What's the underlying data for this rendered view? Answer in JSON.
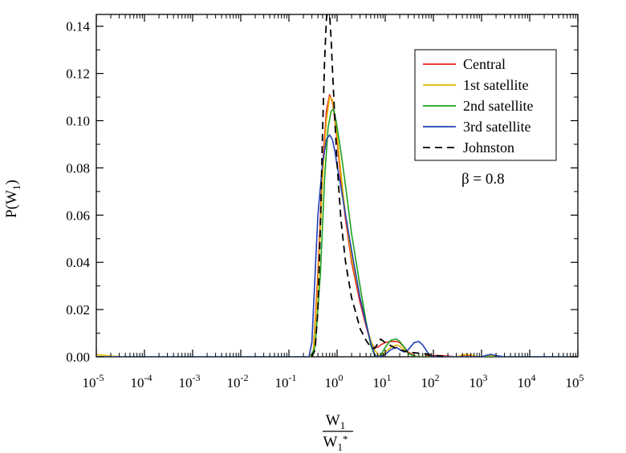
{
  "chart_data": {
    "type": "line",
    "xscale": "log",
    "xlim": [
      1e-05,
      100000.0
    ],
    "ylim": [
      0,
      0.145
    ],
    "x_ticks": [
      {
        "value": 1e-05,
        "base": "10",
        "exp": "-5"
      },
      {
        "value": 0.0001,
        "base": "10",
        "exp": "-4"
      },
      {
        "value": 0.001,
        "base": "10",
        "exp": "-3"
      },
      {
        "value": 0.01,
        "base": "10",
        "exp": "-2"
      },
      {
        "value": 0.1,
        "base": "10",
        "exp": "-1"
      },
      {
        "value": 1,
        "base": "10",
        "exp": "0"
      },
      {
        "value": 10,
        "base": "10",
        "exp": "1"
      },
      {
        "value": 100,
        "base": "10",
        "exp": "2"
      },
      {
        "value": 1000,
        "base": "10",
        "exp": "3"
      },
      {
        "value": 10000,
        "base": "10",
        "exp": "4"
      },
      {
        "value": 100000,
        "base": "10",
        "exp": "5"
      }
    ],
    "y_ticks": [
      {
        "value": 0,
        "label": "0.00"
      },
      {
        "value": 0.02,
        "label": "0.02"
      },
      {
        "value": 0.04,
        "label": "0.04"
      },
      {
        "value": 0.06,
        "label": "0.06"
      },
      {
        "value": 0.08,
        "label": "0.08"
      },
      {
        "value": 0.1,
        "label": "0.10"
      },
      {
        "value": 0.12,
        "label": "0.12"
      },
      {
        "value": 0.14,
        "label": "0.14"
      }
    ],
    "ylabel": {
      "main": "P(W",
      "sub": "1",
      "close": ")"
    },
    "xlabel": {
      "num_main": "W",
      "num_sub": "1",
      "den_main": "W",
      "den_sub": "1",
      "den_sup": "*"
    },
    "annotation": "β = 0.8",
    "legend_position": "top-right",
    "series": [
      {
        "name": "Central",
        "color": "#e8211d",
        "dash": "solid",
        "x": [
          1e-05,
          0.25,
          0.32,
          0.4,
          0.5,
          0.6,
          0.7,
          0.8,
          0.9,
          1.0,
          1.2,
          1.5,
          2.0,
          3.0,
          4.0,
          5.0,
          6.0,
          7.0,
          8.0,
          10,
          13,
          17,
          20,
          25,
          30,
          40,
          50,
          60,
          80,
          100,
          150,
          200,
          300,
          400,
          500,
          600,
          700,
          800,
          1000,
          1200,
          1500,
          2000,
          3000,
          100000
        ],
        "values": [
          0.0,
          0.0,
          0.0015,
          0.035,
          0.08,
          0.104,
          0.111,
          0.108,
          0.1,
          0.092,
          0.075,
          0.058,
          0.04,
          0.023,
          0.013,
          0.006,
          0.004,
          0.004,
          0.005,
          0.006,
          0.0065,
          0.0065,
          0.006,
          0.004,
          0.002,
          0.0005,
          0.0,
          0.0,
          0.0005,
          0.0005,
          0.0005,
          0.0003,
          0.0,
          0.0005,
          0.0008,
          0.0005,
          0.0002,
          0.0,
          0.0,
          0.0002,
          0.0008,
          0.0,
          0.0,
          0.0
        ]
      },
      {
        "name": "1st satellite",
        "color": "#e6b800",
        "dash": "solid",
        "x": [
          1e-05,
          2e-05,
          4e-05,
          0.25,
          0.32,
          0.4,
          0.5,
          0.6,
          0.7,
          0.8,
          0.9,
          1.0,
          1.2,
          1.5,
          2.0,
          3.0,
          4.0,
          5.0,
          6.0,
          7.0,
          8.0,
          10,
          13,
          17,
          20,
          25,
          30,
          40,
          50,
          60,
          80,
          100,
          150,
          200,
          300,
          400,
          500,
          600,
          700,
          800,
          1000,
          1200,
          1500,
          2000,
          3000,
          100000
        ],
        "values": [
          0.001,
          0.0003,
          0.0,
          0.0,
          0.001,
          0.03,
          0.075,
          0.1,
          0.11,
          0.109,
          0.101,
          0.094,
          0.078,
          0.06,
          0.042,
          0.025,
          0.014,
          0.007,
          0.003,
          0.001,
          0.0,
          0.002,
          0.004,
          0.005,
          0.0045,
          0.003,
          0.0015,
          0.0003,
          0.0,
          0.0,
          0.0,
          0.0,
          0.0,
          0.0,
          0.0,
          0.0008,
          0.001,
          0.0008,
          0.0004,
          0.0,
          0.0,
          0.0004,
          0.0006,
          0.0,
          0.0,
          0.0
        ]
      },
      {
        "name": "2nd satellite",
        "color": "#1fa01f",
        "dash": "solid",
        "x": [
          1e-05,
          0.28,
          0.35,
          0.45,
          0.55,
          0.65,
          0.75,
          0.85,
          0.95,
          1.1,
          1.3,
          1.6,
          2.0,
          2.5,
          3.0,
          3.5,
          4.0,
          5.0,
          6.0,
          7.0,
          8.0,
          10,
          13,
          17,
          20,
          25,
          30,
          40,
          50,
          60,
          100000
        ],
        "values": [
          0.0,
          0.0,
          0.004,
          0.035,
          0.075,
          0.097,
          0.104,
          0.105,
          0.1,
          0.092,
          0.082,
          0.068,
          0.052,
          0.04,
          0.03,
          0.022,
          0.015,
          0.005,
          0.0005,
          0.0,
          0.0005,
          0.004,
          0.007,
          0.0075,
          0.0065,
          0.004,
          0.0015,
          0.0002,
          0.0,
          0.0,
          0.0
        ]
      },
      {
        "name": "3rd satellite",
        "color": "#1f3fb5",
        "dash": "solid",
        "x": [
          1e-05,
          0.2,
          0.26,
          0.3,
          0.35,
          0.4,
          0.5,
          0.6,
          0.7,
          0.8,
          0.9,
          1.0,
          1.2,
          1.5,
          2.0,
          2.5,
          3.0,
          4.0,
          5.0,
          6.0,
          7.0,
          8.0,
          10,
          13,
          17,
          20,
          25,
          30,
          40,
          50,
          60,
          70,
          80,
          100,
          120,
          150,
          200,
          300,
          600,
          1000,
          1300,
          1600,
          2000,
          3000,
          100000
        ],
        "values": [
          0.0,
          0.0,
          0.0,
          0.006,
          0.035,
          0.06,
          0.082,
          0.092,
          0.094,
          0.092,
          0.087,
          0.081,
          0.072,
          0.06,
          0.045,
          0.034,
          0.025,
          0.014,
          0.006,
          0.001,
          0.0,
          0.0,
          0.001,
          0.003,
          0.004,
          0.003,
          0.002,
          0.003,
          0.006,
          0.0065,
          0.005,
          0.003,
          0.001,
          0.0,
          0.0,
          0.0,
          0.0,
          0.0,
          0.0,
          0.0,
          0.0007,
          0.001,
          0.0005,
          0.0,
          0.0
        ]
      },
      {
        "name": "Johnston",
        "color": "#000000",
        "dash": "dashed",
        "x": [
          0.3,
          0.35,
          0.4,
          0.45,
          0.5,
          0.55,
          0.6,
          0.65,
          0.7,
          0.75,
          0.8,
          0.9,
          1.0,
          1.2,
          1.5,
          2.0,
          2.5,
          3.0,
          4.0,
          5.0,
          6.0,
          7.0,
          8.0,
          10,
          15,
          20,
          30,
          50,
          80,
          100,
          150,
          200
        ],
        "values": [
          0.0,
          0.003,
          0.02,
          0.055,
          0.095,
          0.125,
          0.143,
          0.148,
          0.145,
          0.135,
          0.122,
          0.1,
          0.082,
          0.058,
          0.04,
          0.025,
          0.018,
          0.012,
          0.007,
          0.004,
          0.0035,
          0.0055,
          0.0075,
          0.006,
          0.004,
          0.003,
          0.002,
          0.0015,
          0.001,
          0.0006,
          0.0003,
          0.0
        ]
      }
    ]
  }
}
